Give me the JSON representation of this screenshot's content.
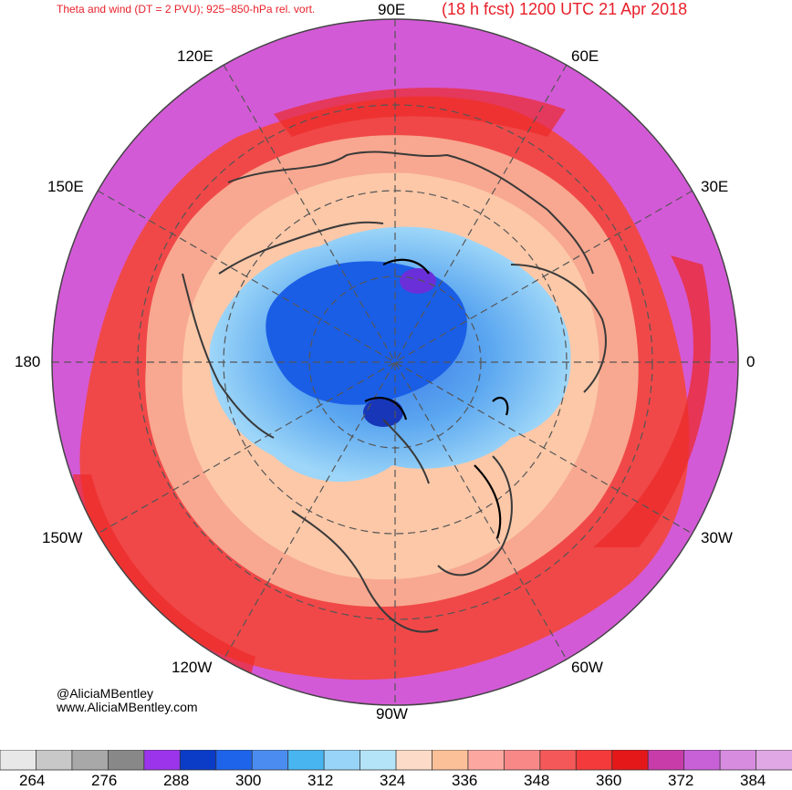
{
  "title": {
    "left": "Theta and wind (DT = 2 PVU); 925−850-hPa rel. vort.",
    "right": "(18 h fcst) 1200 UTC 21 Apr 2018"
  },
  "map": {
    "projection": "north-polar-stereographic",
    "longitude_labels": {
      "l90e": "90E",
      "l60e": "60E",
      "l120e": "120E",
      "l30e": "30E",
      "l150e": "150E",
      "l0": "0",
      "l180": "180",
      "l30w": "30W",
      "l150w": "150W",
      "l60w": "60W",
      "l120w": "120W",
      "l90w": "90W"
    },
    "colors": {
      "outer": "#d35ad6",
      "ring_red": "#f04848",
      "ring_salmon": "#f8a890",
      "ring_peach": "#fcc8a8",
      "cold_light": "#a8dcf8",
      "cold_mid": "#52a8f0",
      "cold_core": "#1a5ee6"
    }
  },
  "credits": {
    "line1": "@AliciaMBentley",
    "line2": "www.AliciaMBentley.com"
  },
  "colorbar": {
    "colors": [
      "#e8e8e8",
      "#c8c8c8",
      "#a8a8a8",
      "#888888",
      "#9b34ea",
      "#0a3cc8",
      "#1e64ea",
      "#4a8cf0",
      "#48b4f0",
      "#98d4f8",
      "#b4e4f8",
      "#fcdcc8",
      "#fcc098",
      "#fca8a0",
      "#f88888",
      "#f45858",
      "#f43a3a",
      "#e41818",
      "#c83caa",
      "#c860d8",
      "#d88ce0",
      "#e0a8e4"
    ],
    "labels": [
      "264",
      "276",
      "288",
      "300",
      "312",
      "324",
      "336",
      "348",
      "360",
      "372",
      "384"
    ]
  }
}
